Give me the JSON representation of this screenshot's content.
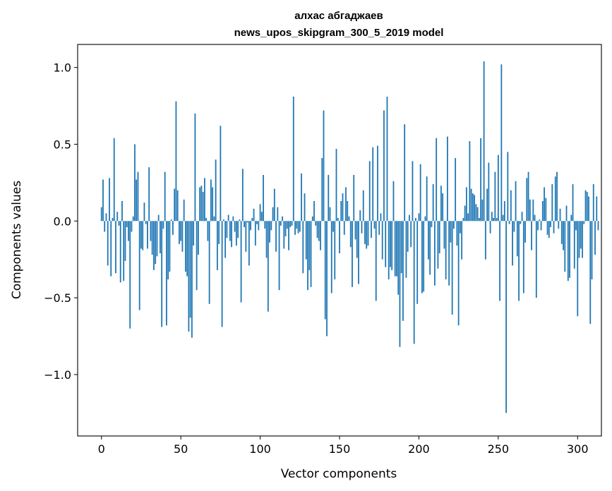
{
  "chart_data": {
    "type": "bar",
    "title_lines": [
      "алхас абгаджаев",
      "news_upos_skipgram_300_5_2019 model"
    ],
    "xlabel": "Vector components",
    "ylabel": "Components values",
    "xlim": [
      -15,
      315
    ],
    "ylim": [
      -1.4,
      1.15
    ],
    "xticks": [
      0,
      50,
      100,
      150,
      200,
      250,
      300
    ],
    "yticks": [
      -1.0,
      -0.5,
      0.0,
      0.5,
      1.0
    ],
    "xtick_labels": [
      "0",
      "50",
      "100",
      "150",
      "200",
      "250",
      "300"
    ],
    "ytick_labels": [
      "−1.0",
      "−0.5",
      "0.0",
      "0.5",
      "1.0"
    ],
    "bar_color": "#1f77b4",
    "grid": false,
    "values": [
      0.09,
      0.27,
      -0.07,
      0.05,
      -0.29,
      0.28,
      -0.36,
      0.02,
      0.54,
      -0.34,
      0.06,
      -0.03,
      -0.4,
      0.13,
      -0.39,
      -0.26,
      -0.04,
      -0.13,
      -0.7,
      -0.07,
      0.03,
      0.5,
      0.27,
      0.32,
      -0.58,
      -0.18,
      -0.19,
      0.12,
      -0.02,
      -0.18,
      0.35,
      -0.13,
      -0.22,
      -0.32,
      -0.28,
      -0.23,
      0.04,
      -0.21,
      -0.69,
      -0.05,
      0.32,
      -0.68,
      -0.38,
      -0.33,
      0.01,
      -0.09,
      0.21,
      0.78,
      0.2,
      -0.15,
      -0.13,
      -0.2,
      0.14,
      -0.33,
      -0.36,
      -0.72,
      -0.63,
      -0.76,
      -0.16,
      0.7,
      -0.45,
      -0.22,
      0.22,
      0.23,
      0.19,
      0.28,
      0.02,
      -0.13,
      -0.54,
      0.27,
      0.22,
      0.03,
      0.4,
      -0.32,
      -0.15,
      0.62,
      -0.69,
      0.01,
      -0.24,
      -0.11,
      0.04,
      -0.13,
      -0.17,
      0.03,
      -0.07,
      -0.16,
      -0.11,
      0.01,
      -0.53,
      0.34,
      -0.04,
      -0.2,
      -0.01,
      -0.29,
      -0.06,
      0.02,
      0.08,
      -0.16,
      -0.02,
      -0.06,
      0.11,
      0.06,
      0.3,
      -0.05,
      -0.24,
      -0.59,
      -0.14,
      -0.06,
      0.09,
      0.21,
      -0.2,
      0.09,
      -0.45,
      -0.03,
      0.03,
      -0.18,
      -0.1,
      -0.05,
      -0.19,
      -0.04,
      -0.03,
      0.81,
      -0.09,
      -0.05,
      -0.08,
      -0.07,
      0.31,
      -0.34,
      0.18,
      -0.25,
      -0.45,
      -0.32,
      -0.43,
      0.03,
      0.13,
      -0.03,
      -0.11,
      -0.13,
      -0.19,
      0.41,
      0.72,
      -0.64,
      -0.75,
      0.3,
      0.09,
      -0.47,
      -0.07,
      -0.38,
      0.47,
      0.02,
      -0.21,
      0.13,
      0.18,
      -0.09,
      0.22,
      0.13,
      0.03,
      -0.17,
      -0.43,
      0.3,
      -0.12,
      -0.24,
      -0.41,
      0.07,
      -0.08,
      0.2,
      -0.15,
      -0.18,
      -0.16,
      0.39,
      -0.11,
      0.48,
      -0.05,
      -0.52,
      0.49,
      -0.09,
      0.05,
      -0.25,
      0.72,
      -0.3,
      0.81,
      -0.38,
      -0.3,
      -0.32,
      0.26,
      -0.36,
      -0.36,
      -0.48,
      -0.82,
      -0.34,
      -0.65,
      0.63,
      -0.37,
      -0.2,
      0.04,
      -0.17,
      0.39,
      -0.8,
      0.02,
      -0.54,
      0.05,
      0.37,
      -0.47,
      -0.46,
      0.03,
      0.29,
      -0.25,
      -0.35,
      -0.04,
      0.24,
      -0.42,
      0.54,
      -0.31,
      -0.21,
      0.23,
      0.18,
      -0.18,
      -0.38,
      0.55,
      -0.42,
      -0.14,
      -0.61,
      -0.05,
      0.41,
      -0.16,
      -0.68,
      -0.08,
      -0.25,
      0.02,
      0.1,
      0.22,
      0.05,
      0.52,
      0.21,
      0.18,
      0.17,
      0.11,
      0.09,
      0.02,
      0.54,
      0.14,
      1.04,
      -0.25,
      0.21,
      0.38,
      -0.08,
      0.06,
      0.02,
      0.32,
      0.02,
      0.43,
      -0.52,
      1.02,
      0.04,
      0.13,
      -1.25,
      0.45,
      -0.02,
      0.2,
      -0.29,
      -0.07,
      0.26,
      -0.23,
      -0.52,
      -0.02,
      0.06,
      -0.47,
      -0.14,
      0.28,
      0.32,
      0.14,
      -0.19,
      0.14,
      0.04,
      -0.5,
      -0.06,
      0.01,
      -0.06,
      0.13,
      0.22,
      0.15,
      -0.09,
      -0.11,
      -0.04,
      0.24,
      -0.08,
      0.29,
      0.32,
      -0.05,
      0.08,
      -0.15,
      -0.19,
      -0.33,
      0.1,
      -0.39,
      -0.37,
      0.04,
      0.24,
      -0.31,
      -0.06,
      -0.62,
      -0.24,
      -0.18,
      -0.24,
      -0.02,
      0.2,
      0.19,
      0.16,
      -0.67,
      -0.38,
      0.24,
      -0.22,
      0.16,
      -0.06
    ]
  }
}
